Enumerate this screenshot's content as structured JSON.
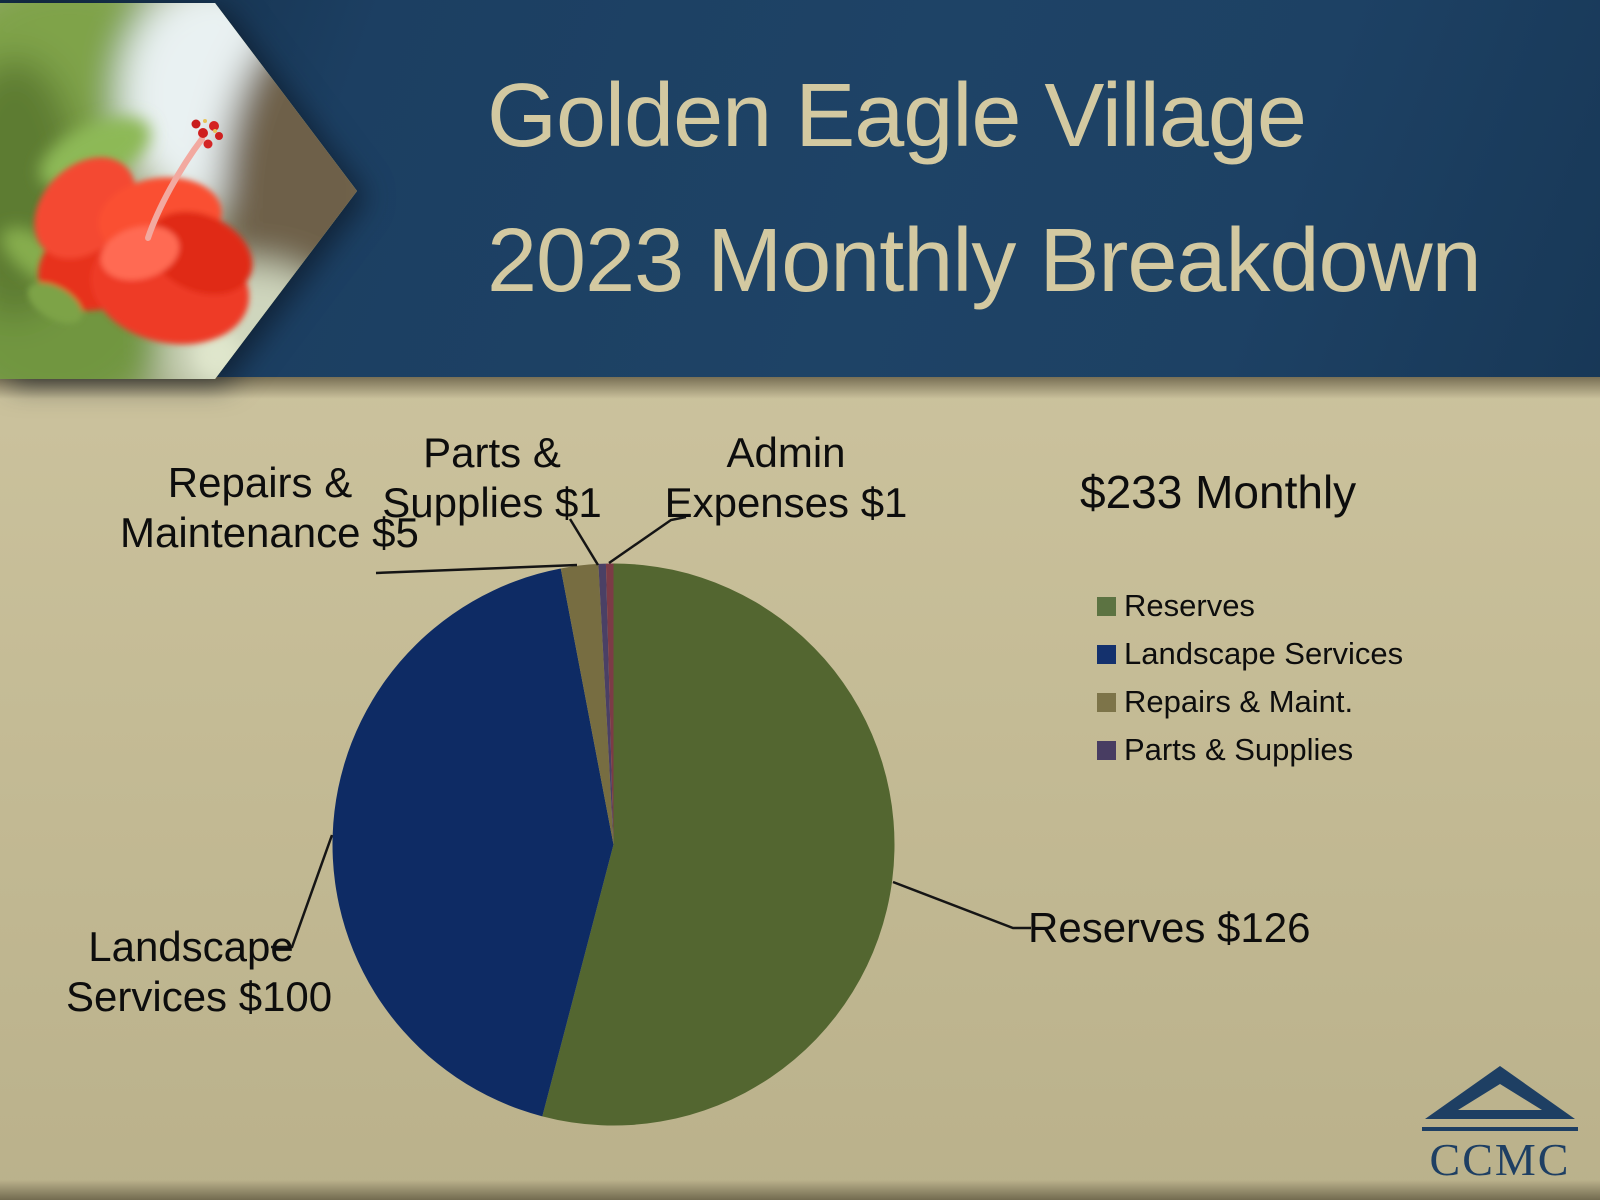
{
  "slide": {
    "title_line1": "Golden Eagle Village",
    "title_line2": "2023 Monthly Breakdown"
  },
  "chart_data": {
    "type": "pie",
    "title": "$233 Monthly",
    "total": 233,
    "start_angle_deg": 0,
    "direction": "clockwise",
    "slices": [
      {
        "key": "reserves",
        "label": "Reserves",
        "value": 126,
        "color": "#536630"
      },
      {
        "key": "landscape",
        "label": "Landscape Services",
        "value": 100,
        "color": "#0e2b64"
      },
      {
        "key": "repairs",
        "label": "Repairs & Maint.",
        "value": 5,
        "color": "#776d41"
      },
      {
        "key": "parts",
        "label": "Parts & Supplies",
        "value": 1,
        "color": "#4a4065"
      },
      {
        "key": "admin",
        "label": "Admin Expenses",
        "value": 1,
        "color": "#7c3b46"
      }
    ]
  },
  "legend": {
    "title": "$233 Monthly",
    "items": [
      {
        "label": "Reserves",
        "color": "#5c7342"
      },
      {
        "label": "Landscape Services",
        "color": "#14316d"
      },
      {
        "label": "Repairs & Maint.",
        "color": "#7d7449"
      },
      {
        "label": "Parts & Supplies",
        "color": "#483d62"
      }
    ]
  },
  "callouts": {
    "repairs": {
      "line1": "Repairs &",
      "line2": "Maintenance $5"
    },
    "parts": {
      "line1": "Parts &",
      "line2": "Supplies $1"
    },
    "admin": {
      "line1": "Admin",
      "line2": "Expenses $1"
    },
    "landscape": {
      "line1": "Landscape",
      "line2": "Services $100"
    },
    "reserves": {
      "text": "Reserves $126"
    }
  },
  "logo": {
    "text": "CCMC",
    "color": "#1e3f63"
  },
  "colors": {
    "header_navy": "#1d4164",
    "title_text": "#d3c9a1",
    "body_tan": "#c4bb95",
    "label_text": "#0d0d0d"
  }
}
